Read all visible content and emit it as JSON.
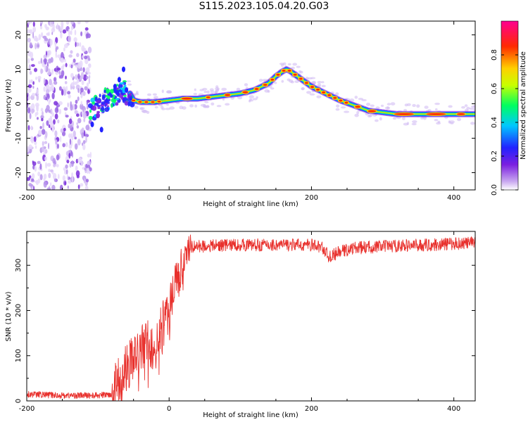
{
  "title": "S115.2023.105.04.20.G03",
  "chart_data": [
    {
      "type": "heatmap",
      "xlabel": "Height of straight line (km)",
      "ylabel": "Frequency (Hz)",
      "xlim": [
        -200,
        430
      ],
      "ylim": [
        -25,
        24
      ],
      "xticks": [
        -200,
        0,
        200,
        400
      ],
      "yticks": [
        -20,
        -10,
        0,
        10,
        20
      ],
      "colorbar": {
        "label": "Normalized spectral amplitude",
        "range": [
          0,
          1
        ],
        "ticks": [
          "0.0",
          "0.2",
          "0.4",
          "0.6",
          "0.8"
        ],
        "colormap": "rainbow (purple-blue-cyan-green-yellow-red-magenta)"
      },
      "noise_region_x": [
        -200,
        -110
      ],
      "ridge": {
        "x": [
          -110,
          -95,
          -80,
          -70,
          -60,
          -50,
          -40,
          -20,
          0,
          20,
          40,
          60,
          80,
          100,
          120,
          140,
          150,
          160,
          165,
          170,
          180,
          200,
          220,
          240,
          260,
          280,
          300,
          320,
          350,
          380,
          400,
          430
        ],
        "frequency": [
          -2,
          0,
          2,
          3,
          5,
          1,
          0.5,
          0.5,
          1,
          1.5,
          1.5,
          2,
          2.5,
          3,
          4,
          6,
          8,
          9.5,
          10,
          9.5,
          8,
          5,
          3,
          1,
          -0.5,
          -2,
          -2.5,
          -3,
          -3,
          -3,
          -3,
          -3
        ]
      }
    },
    {
      "type": "line",
      "xlabel": "Height of straight line (km)",
      "ylabel": "SNR (10 * v/v)",
      "xlim": [
        -200,
        430
      ],
      "ylim": [
        0,
        375
      ],
      "xticks": [
        -200,
        0,
        200,
        400
      ],
      "yticks": [
        0,
        100,
        200,
        300
      ],
      "color": "#e8302c",
      "series": [
        {
          "x": [
            -200,
            -150,
            -100,
            -80,
            -70,
            -60,
            -50,
            -40,
            -30,
            -20,
            -10,
            0,
            10,
            20,
            25,
            30,
            40,
            60,
            80,
            100,
            120,
            140,
            160,
            180,
            200,
            215,
            225,
            240,
            260,
            280,
            300,
            320,
            340,
            360,
            380,
            400,
            430
          ],
          "y": [
            15,
            12,
            12,
            15,
            50,
            70,
            100,
            110,
            130,
            115,
            165,
            210,
            255,
            300,
            330,
            340,
            342,
            343,
            345,
            345,
            345,
            345,
            345,
            345,
            345,
            340,
            318,
            330,
            338,
            340,
            342,
            343,
            344,
            345,
            346,
            348,
            350
          ]
        }
      ]
    }
  ]
}
